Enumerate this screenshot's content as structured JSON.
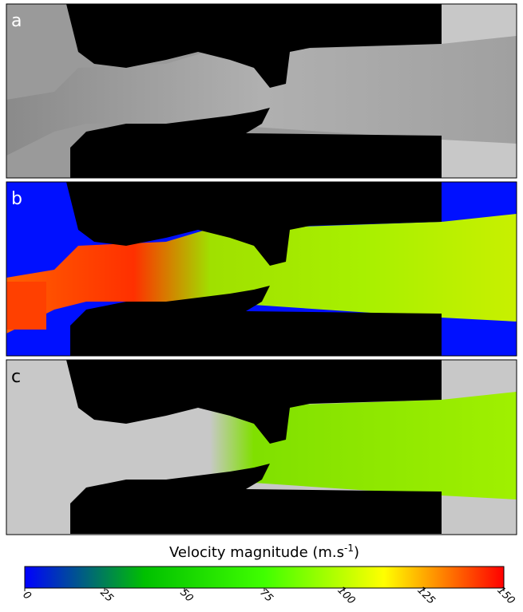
{
  "panels": [
    {
      "label": "a"
    },
    {
      "label": "b"
    },
    {
      "label": "c"
    }
  ],
  "colorbar": {
    "type": "colorbar",
    "title": "Velocity magnitude (m.s",
    "title_sup": "-1",
    "title_end": ")",
    "lim": [
      0,
      150
    ],
    "ticks": [
      0,
      25,
      50,
      75,
      100,
      125,
      150
    ],
    "colors": [
      "#0000ff",
      "#00c000",
      "#40ff00",
      "#ffff00",
      "#ff0000"
    ]
  }
}
